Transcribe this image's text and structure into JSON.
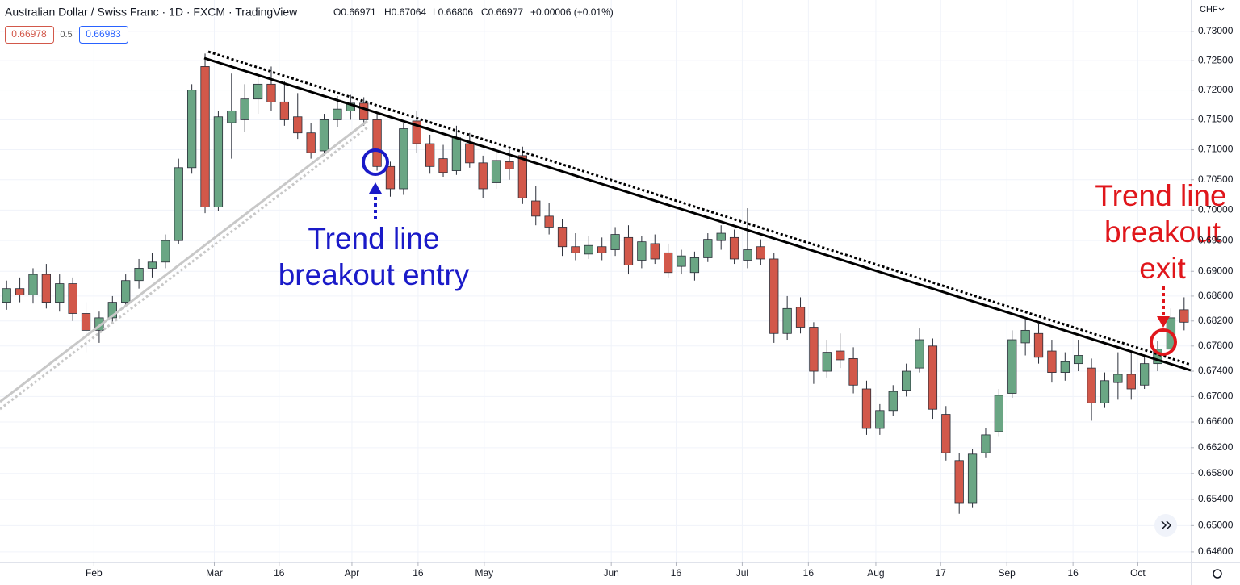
{
  "chart_data": {
    "type": "candlestick",
    "title": "Australian Dollar / Swiss Franc · 1D · FXCM · TradingView",
    "ohlc_header": [
      "O0.66971",
      "H0.67064",
      "L0.66806",
      "C0.66977",
      "+0.00006 (+0.01%)"
    ],
    "badges": [
      "0.66978",
      "0.5",
      "0.66983"
    ],
    "currency": "CHF",
    "annotations": [
      {
        "lines": [
          "Trend line",
          "breakout entry"
        ],
        "color": "#1a1ac8"
      },
      {
        "lines": [
          "Trend line",
          "breakout",
          "exit"
        ],
        "color": "#e0161b"
      }
    ],
    "up_color": "#6aa684",
    "down_color": "#d2584a",
    "log_scale": true,
    "grid": true,
    "xlim": [
      -0.5,
      89.5
    ],
    "xticks": [
      {
        "value": 6.6,
        "label": "Feb"
      },
      {
        "value": 15.7,
        "label": "Mar"
      },
      {
        "value": 20.6,
        "label": "16"
      },
      {
        "value": 26.1,
        "label": "Apr"
      },
      {
        "value": 31.1,
        "label": "16"
      },
      {
        "value": 36.1,
        "label": "May"
      },
      {
        "value": 45.7,
        "label": "Jun"
      },
      {
        "value": 50.6,
        "label": "16"
      },
      {
        "value": 55.6,
        "label": "Jul"
      },
      {
        "value": 60.6,
        "label": "16"
      },
      {
        "value": 65.7,
        "label": "Aug"
      },
      {
        "value": 70.6,
        "label": "17"
      },
      {
        "value": 75.6,
        "label": "Sep"
      },
      {
        "value": 80.6,
        "label": "16"
      },
      {
        "value": 85.5,
        "label": "Oct"
      }
    ],
    "ylim": [
      0.6444,
      0.7354
    ],
    "yticks": [
      {
        "value": 0.73,
        "label": "0.73000"
      },
      {
        "value": 0.725,
        "label": "0.72500"
      },
      {
        "value": 0.72,
        "label": "0.72000"
      },
      {
        "value": 0.715,
        "label": "0.71500"
      },
      {
        "value": 0.71,
        "label": "0.71000"
      },
      {
        "value": 0.705,
        "label": "0.70500"
      },
      {
        "value": 0.7,
        "label": "0.70000"
      },
      {
        "value": 0.695,
        "label": "0.69500"
      },
      {
        "value": 0.69,
        "label": "0.69000"
      },
      {
        "value": 0.686,
        "label": "0.68600"
      },
      {
        "value": 0.682,
        "label": "0.68200"
      },
      {
        "value": 0.678,
        "label": "0.67800"
      },
      {
        "value": 0.674,
        "label": "0.67400"
      },
      {
        "value": 0.67,
        "label": "0.67000"
      },
      {
        "value": 0.666,
        "label": "0.66600"
      },
      {
        "value": 0.662,
        "label": "0.66200"
      },
      {
        "value": 0.658,
        "label": "0.65800"
      },
      {
        "value": 0.654,
        "label": "0.65400"
      },
      {
        "value": 0.65,
        "label": "0.65000"
      },
      {
        "value": 0.646,
        "label": "0.64600"
      }
    ],
    "ohlc": [
      [
        0.685,
        0.6885,
        0.6838,
        0.6872
      ],
      [
        0.6872,
        0.689,
        0.685,
        0.6862
      ],
      [
        0.6862,
        0.6905,
        0.6848,
        0.6895
      ],
      [
        0.6895,
        0.6912,
        0.684,
        0.685
      ],
      [
        0.685,
        0.6895,
        0.6835,
        0.688
      ],
      [
        0.688,
        0.689,
        0.682,
        0.6832
      ],
      [
        0.6832,
        0.685,
        0.677,
        0.6805
      ],
      [
        0.6805,
        0.6835,
        0.6785,
        0.6825
      ],
      [
        0.6825,
        0.686,
        0.6815,
        0.685
      ],
      [
        0.685,
        0.6895,
        0.6842,
        0.6885
      ],
      [
        0.6885,
        0.692,
        0.6872,
        0.6905
      ],
      [
        0.6905,
        0.693,
        0.689,
        0.6915
      ],
      [
        0.6915,
        0.696,
        0.6905,
        0.695
      ],
      [
        0.695,
        0.7085,
        0.6945,
        0.707
      ],
      [
        0.707,
        0.721,
        0.706,
        0.72
      ],
      [
        0.724,
        0.7262,
        0.6995,
        0.7005
      ],
      [
        0.7005,
        0.7165,
        0.6998,
        0.7155
      ],
      [
        0.7145,
        0.7228,
        0.7085,
        0.7165
      ],
      [
        0.715,
        0.721,
        0.713,
        0.7185
      ],
      [
        0.7185,
        0.7225,
        0.716,
        0.721
      ],
      [
        0.721,
        0.724,
        0.7165,
        0.718
      ],
      [
        0.718,
        0.7215,
        0.714,
        0.715
      ],
      [
        0.7155,
        0.7195,
        0.7118,
        0.7128
      ],
      [
        0.7128,
        0.7145,
        0.7085,
        0.7095
      ],
      [
        0.7098,
        0.716,
        0.709,
        0.715
      ],
      [
        0.715,
        0.719,
        0.7138,
        0.7168
      ],
      [
        0.7165,
        0.7192,
        0.715,
        0.7178
      ],
      [
        0.7178,
        0.7188,
        0.714,
        0.715
      ],
      [
        0.715,
        0.7162,
        0.7065,
        0.7072
      ],
      [
        0.7072,
        0.708,
        0.7022,
        0.7035
      ],
      [
        0.7035,
        0.7145,
        0.7025,
        0.7135
      ],
      [
        0.7148,
        0.7165,
        0.7095,
        0.711
      ],
      [
        0.711,
        0.7125,
        0.706,
        0.7072
      ],
      [
        0.7085,
        0.7108,
        0.7055,
        0.7062
      ],
      [
        0.7065,
        0.714,
        0.7058,
        0.712
      ],
      [
        0.711,
        0.7128,
        0.707,
        0.7078
      ],
      [
        0.7078,
        0.709,
        0.702,
        0.7035
      ],
      [
        0.7045,
        0.7095,
        0.7035,
        0.7082
      ],
      [
        0.708,
        0.71,
        0.705,
        0.7068
      ],
      [
        0.709,
        0.7105,
        0.701,
        0.702
      ],
      [
        0.7015,
        0.704,
        0.6975,
        0.699
      ],
      [
        0.699,
        0.7012,
        0.696,
        0.6972
      ],
      [
        0.6972,
        0.6985,
        0.6925,
        0.694
      ],
      [
        0.694,
        0.6962,
        0.6918,
        0.693
      ],
      [
        0.6928,
        0.6958,
        0.692,
        0.6942
      ],
      [
        0.694,
        0.6955,
        0.6918,
        0.693
      ],
      [
        0.6935,
        0.6972,
        0.6925,
        0.696
      ],
      [
        0.6955,
        0.6975,
        0.6895,
        0.691
      ],
      [
        0.6918,
        0.6958,
        0.6905,
        0.6948
      ],
      [
        0.6945,
        0.696,
        0.6912,
        0.692
      ],
      [
        0.693,
        0.6945,
        0.689,
        0.6898
      ],
      [
        0.6908,
        0.6935,
        0.6895,
        0.6925
      ],
      [
        0.6898,
        0.6932,
        0.6885,
        0.6922
      ],
      [
        0.6922,
        0.6962,
        0.6915,
        0.6952
      ],
      [
        0.695,
        0.6975,
        0.6935,
        0.6962
      ],
      [
        0.6955,
        0.6968,
        0.6912,
        0.692
      ],
      [
        0.6918,
        0.7003,
        0.6905,
        0.6935
      ],
      [
        0.694,
        0.6952,
        0.691,
        0.692
      ],
      [
        0.692,
        0.693,
        0.6785,
        0.68
      ],
      [
        0.68,
        0.686,
        0.679,
        0.684
      ],
      [
        0.6842,
        0.6858,
        0.68,
        0.681
      ],
      [
        0.681,
        0.6818,
        0.672,
        0.674
      ],
      [
        0.674,
        0.679,
        0.673,
        0.677
      ],
      [
        0.6772,
        0.68,
        0.6745,
        0.6758
      ],
      [
        0.676,
        0.6778,
        0.6705,
        0.6718
      ],
      [
        0.6712,
        0.6725,
        0.664,
        0.665
      ],
      [
        0.665,
        0.6688,
        0.664,
        0.6678
      ],
      [
        0.6678,
        0.6718,
        0.667,
        0.6708
      ],
      [
        0.671,
        0.6752,
        0.67,
        0.674
      ],
      [
        0.6745,
        0.6808,
        0.6738,
        0.679
      ],
      [
        0.678,
        0.6792,
        0.6665,
        0.668
      ],
      [
        0.6672,
        0.6685,
        0.66,
        0.6612
      ],
      [
        0.66,
        0.6612,
        0.6518,
        0.6535
      ],
      [
        0.6535,
        0.6618,
        0.6528,
        0.661
      ],
      [
        0.6612,
        0.665,
        0.6605,
        0.664
      ],
      [
        0.6645,
        0.6712,
        0.6638,
        0.6702
      ],
      [
        0.6705,
        0.6805,
        0.6698,
        0.679
      ],
      [
        0.6785,
        0.6822,
        0.6765,
        0.6805
      ],
      [
        0.68,
        0.6815,
        0.6752,
        0.6762
      ],
      [
        0.6772,
        0.679,
        0.6722,
        0.6738
      ],
      [
        0.6738,
        0.677,
        0.6725,
        0.6755
      ],
      [
        0.6752,
        0.679,
        0.674,
        0.6765
      ],
      [
        0.6745,
        0.676,
        0.6662,
        0.669
      ],
      [
        0.669,
        0.6738,
        0.6682,
        0.6725
      ],
      [
        0.6722,
        0.677,
        0.6695,
        0.6735
      ],
      [
        0.6735,
        0.6772,
        0.6695,
        0.6712
      ],
      [
        0.6718,
        0.6762,
        0.6712,
        0.6752
      ],
      [
        0.6752,
        0.6788,
        0.674,
        0.6775
      ],
      [
        0.6775,
        0.684,
        0.677,
        0.6825
      ],
      [
        0.6838,
        0.6858,
        0.6805,
        0.6818
      ]
    ]
  }
}
